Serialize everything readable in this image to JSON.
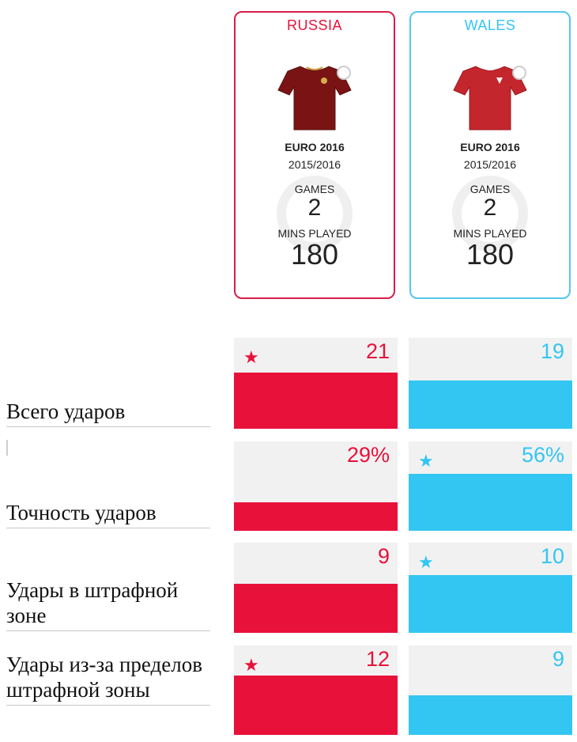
{
  "colors": {
    "russia": "#e8113a",
    "wales": "#33c6f2"
  },
  "teams": [
    {
      "name": "RUSSIA",
      "competition": "EURO 2016",
      "season": "2015/2016",
      "games_label": "GAMES",
      "games": "2",
      "mins_label": "MINS PLAYED",
      "mins": "180",
      "shirt_icon": "shirt-icon"
    },
    {
      "name": "WALES",
      "competition": "EURO 2016",
      "season": "2015/2016",
      "games_label": "GAMES",
      "games": "2",
      "mins_label": "MINS PLAYED",
      "mins": "180",
      "shirt_icon": "shirt-icon"
    }
  ],
  "stats": [
    {
      "label": "Всего ударов"
    },
    {
      "label": "Точность ударов"
    },
    {
      "label": "Удары в штрафной зоне"
    },
    {
      "label": "Удары из-за пределов штрафной зоны"
    }
  ],
  "chart_data": {
    "type": "bar",
    "categories": [
      "Всего ударов",
      "Точность ударов",
      "Удары в штрафной зоне",
      "Удары из-за пределов штрафной зоны"
    ],
    "series": [
      {
        "name": "RUSSIA",
        "values": [
          21,
          29,
          9,
          12
        ],
        "labels": [
          "21",
          "29%",
          "9",
          "12"
        ],
        "bar_fraction": [
          0.62,
          0.32,
          0.54,
          0.66
        ],
        "leader": [
          true,
          false,
          false,
          true
        ]
      },
      {
        "name": "WALES",
        "values": [
          19,
          56,
          10,
          9
        ],
        "labels": [
          "19",
          "56%",
          "10",
          "9"
        ],
        "bar_fraction": [
          0.53,
          0.64,
          0.64,
          0.44
        ],
        "leader": [
          false,
          true,
          true,
          false
        ]
      }
    ]
  }
}
